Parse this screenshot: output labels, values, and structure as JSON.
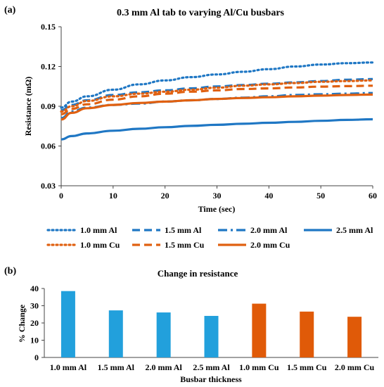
{
  "charts": [
    {
      "type": "line",
      "panel_label": "(a)",
      "title": "0.3 mm Al tab to varying Al/Cu busbars",
      "xlabel": "Time (sec)",
      "ylabel": "Resistance (mΩ)",
      "xlim": [
        0,
        60
      ],
      "ylim": [
        0.03,
        0.15
      ],
      "xticks": [
        "0",
        "10",
        "20",
        "30",
        "40",
        "50",
        "60"
      ],
      "yticks": [
        "0.03",
        "0.06",
        "0.09",
        "0.12",
        "0.15"
      ],
      "grid": false,
      "legend_position": "bottom",
      "x": [
        0,
        2,
        5,
        10,
        15,
        20,
        25,
        30,
        35,
        40,
        45,
        50,
        55,
        60
      ],
      "series": [
        {
          "name": "1.0 mm Al",
          "color": "#1f77c4",
          "dash": "dot",
          "values": [
            0.089,
            0.0935,
            0.0975,
            0.1025,
            0.1065,
            0.1095,
            0.112,
            0.114,
            0.116,
            0.118,
            0.12,
            0.1215,
            0.1225,
            0.123
          ]
        },
        {
          "name": "1.5 mm Al",
          "color": "#1f77c4",
          "dash": "dash",
          "values": [
            0.087,
            0.091,
            0.0945,
            0.0985,
            0.1005,
            0.102,
            0.1035,
            0.105,
            0.106,
            0.107,
            0.108,
            0.109,
            0.11,
            0.1105
          ]
        },
        {
          "name": "2.0 mm Al",
          "color": "#1f77c4",
          "dash": "dashdot",
          "values": [
            0.081,
            0.086,
            0.089,
            0.091,
            0.092,
            0.0935,
            0.0945,
            0.0955,
            0.0965,
            0.0975,
            0.0985,
            0.099,
            0.0995,
            0.1
          ]
        },
        {
          "name": "2.5 mm Al",
          "color": "#1f77c4",
          "dash": "solid",
          "values": [
            0.065,
            0.0675,
            0.0695,
            0.0715,
            0.073,
            0.0742,
            0.0752,
            0.076,
            0.0768,
            0.0775,
            0.0782,
            0.079,
            0.0797,
            0.0802
          ]
        },
        {
          "name": "1.0 mm Cu",
          "color": "#e06010",
          "dash": "dot",
          "values": [
            0.086,
            0.09,
            0.094,
            0.0975,
            0.0995,
            0.101,
            0.1025,
            0.104,
            0.1055,
            0.1065,
            0.1075,
            0.1085,
            0.109,
            0.1095
          ]
        },
        {
          "name": "1.5 mm Cu",
          "color": "#e06010",
          "dash": "dash",
          "values": [
            0.084,
            0.088,
            0.0915,
            0.095,
            0.0975,
            0.0995,
            0.101,
            0.102,
            0.103,
            0.1035,
            0.1042,
            0.1048,
            0.1052,
            0.1055
          ]
        },
        {
          "name": "2.0 mm Cu",
          "color": "#e06010",
          "dash": "solid",
          "values": [
            0.08,
            0.085,
            0.0885,
            0.091,
            0.0925,
            0.0935,
            0.0945,
            0.0955,
            0.0962,
            0.0968,
            0.0975,
            0.098,
            0.0985,
            0.0988
          ]
        }
      ]
    },
    {
      "type": "bar",
      "panel_label": "(b)",
      "title": "Change in resistance",
      "xlabel": "Busbar thickness",
      "ylabel": "% Change",
      "ylim": [
        0,
        40
      ],
      "yticks": [
        "0",
        "10",
        "20",
        "30",
        "40"
      ],
      "grid": false,
      "categories": [
        "1.0 mm Al",
        "1.5 mm Al",
        "2.0 mm Al",
        "2.5 mm Al",
        "1.0 mm Cu",
        "1.5 mm Cu",
        "2.0 mm Cu"
      ],
      "values": [
        38.5,
        27.3,
        26.1,
        24.1,
        31.2,
        26.6,
        23.6
      ],
      "colors": [
        "#22a0dc",
        "#22a0dc",
        "#22a0dc",
        "#22a0dc",
        "#e05a08",
        "#e05a08",
        "#e05a08"
      ]
    }
  ]
}
